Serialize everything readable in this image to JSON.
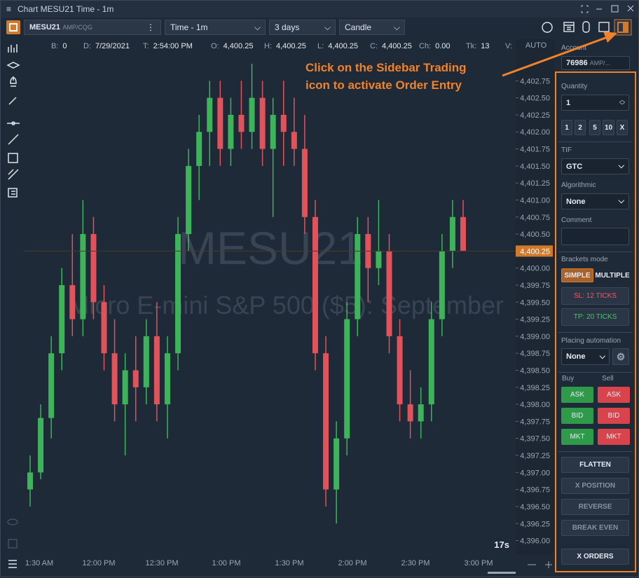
{
  "window": {
    "title": "Chart MESU21 Time - 1m"
  },
  "toolbar": {
    "symbol": "MESU21",
    "exchange": "AMP/CQG",
    "timeframe": "Time - 1m",
    "range": "3 days",
    "style": "Candle"
  },
  "info": [
    [
      "B:",
      "0"
    ],
    [
      "D:",
      "7/29/2021"
    ],
    [
      "T:",
      "2:54:00 PM"
    ],
    [
      "O:",
      "4,400.25"
    ],
    [
      "H:",
      "4,400.25"
    ],
    [
      "L:",
      "4,400.25"
    ],
    [
      "C:",
      "4,400.25"
    ],
    [
      "Ch:",
      "0.00"
    ],
    [
      "Tk:",
      "13"
    ],
    [
      "V:"
    ]
  ],
  "chart": {
    "symbol_watermark": "MESU21",
    "description_watermark": "Micro E-mini S&P 500 ($5): September",
    "scale_mode": "AUTO",
    "timer": "17s",
    "ylim": [
      4395.8,
      4403.35
    ],
    "yticks": [
      {
        "value": 4396,
        "label": "4,396.00"
      },
      {
        "value": 4396.25,
        "label": "4,396.25"
      },
      {
        "value": 4396.5,
        "label": "4,396.50"
      },
      {
        "value": 4396.75,
        "label": "4,396.75"
      },
      {
        "value": 4397,
        "label": "4,397.00"
      },
      {
        "value": 4397.25,
        "label": "4,397.25"
      },
      {
        "value": 4397.5,
        "label": "4,397.50"
      },
      {
        "value": 4397.75,
        "label": "4,397.75"
      },
      {
        "value": 4398,
        "label": "4,398.00"
      },
      {
        "value": 4398.25,
        "label": "4,398.25"
      },
      {
        "value": 4398.5,
        "label": "4,398.50"
      },
      {
        "value": 4398.75,
        "label": "4,398.75"
      },
      {
        "value": 4399,
        "label": "4,399.00"
      },
      {
        "value": 4399.25,
        "label": "4,399.25"
      },
      {
        "value": 4399.5,
        "label": "4,399.50"
      },
      {
        "value": 4399.75,
        "label": "4,399.75"
      },
      {
        "value": 4400,
        "label": "4,400.00"
      },
      {
        "value": 4400.25,
        "label": "4,400.25"
      },
      {
        "value": 4400.5,
        "label": "4,400.50"
      },
      {
        "value": 4400.75,
        "label": "4,400.75"
      },
      {
        "value": 4401,
        "label": "4,401.00"
      },
      {
        "value": 4401.25,
        "label": "4,401.25"
      },
      {
        "value": 4401.5,
        "label": "4,401.50"
      },
      {
        "value": 4401.75,
        "label": "4,401.75"
      },
      {
        "value": 4402,
        "label": "4,402.00"
      },
      {
        "value": 4402.25,
        "label": "4,402.25"
      },
      {
        "value": 4402.5,
        "label": "4,402.50"
      },
      {
        "value": 4402.75,
        "label": "4,402.75"
      }
    ],
    "x_labels": [
      "1:30 AM",
      "12:00 PM",
      "12:30 PM",
      "1:00 PM",
      "1:30 PM",
      "2:00 PM",
      "2:30 PM",
      "3:00 PM"
    ],
    "last_price": {
      "value": 4400.25,
      "label": "4,400.25"
    },
    "up_color": "#3db35a",
    "down_color": "#e0535b",
    "candles": [
      [
        4396.75,
        4397.25,
        4396.5,
        4397.0
      ],
      [
        4397.0,
        4398.0,
        4396.9,
        4397.8
      ],
      [
        4397.8,
        4399.0,
        4397.5,
        4398.75
      ],
      [
        4398.75,
        4400.0,
        4398.5,
        4399.75
      ],
      [
        4399.75,
        4400.5,
        4399.0,
        4399.25
      ],
      [
        4399.25,
        4401.0,
        4399.0,
        4400.5
      ],
      [
        4400.5,
        4400.75,
        4399.25,
        4399.5
      ],
      [
        4399.5,
        4399.75,
        4398.5,
        4398.75
      ],
      [
        4398.75,
        4399.25,
        4397.75,
        4398.0
      ],
      [
        4398.0,
        4398.75,
        4397.25,
        4398.5
      ],
      [
        4398.5,
        4399.0,
        4397.75,
        4398.25
      ],
      [
        4398.25,
        4399.25,
        4398.0,
        4399.0
      ],
      [
        4399.0,
        4399.5,
        4397.75,
        4398.0
      ],
      [
        4398.0,
        4399.0,
        4397.5,
        4398.75
      ],
      [
        4398.75,
        4400.75,
        4398.5,
        4400.5
      ],
      [
        4400.5,
        4401.75,
        4400.25,
        4401.5
      ],
      [
        4401.5,
        4402.25,
        4401.0,
        4402.0
      ],
      [
        4402.0,
        4402.75,
        4401.5,
        4402.5
      ],
      [
        4402.5,
        4402.75,
        4401.5,
        4401.75
      ],
      [
        4401.75,
        4402.5,
        4401.5,
        4402.25
      ],
      [
        4402.25,
        4402.75,
        4401.75,
        4402.0
      ],
      [
        4402.0,
        4403.0,
        4401.75,
        4402.5
      ],
      [
        4402.5,
        4402.75,
        4401.5,
        4401.75
      ],
      [
        4401.75,
        4402.5,
        4400.75,
        4402.25
      ],
      [
        4402.25,
        4402.75,
        4401.5,
        4402.0
      ],
      [
        4402.0,
        4402.5,
        4401.5,
        4401.75
      ],
      [
        4401.75,
        4402.25,
        4400.5,
        4400.75
      ],
      [
        4400.75,
        4401.0,
        4398.5,
        4398.75
      ],
      [
        4398.75,
        4399.0,
        4396.5,
        4396.75
      ],
      [
        4396.75,
        4397.75,
        4396.25,
        4397.5
      ],
      [
        4397.5,
        4399.5,
        4397.25,
        4399.25
      ],
      [
        4399.25,
        4400.75,
        4399.0,
        4400.5
      ],
      [
        4400.5,
        4400.75,
        4399.5,
        4400.0
      ],
      [
        4400.0,
        4401.0,
        4399.75,
        4400.25
      ],
      [
        4400.25,
        4400.5,
        4398.75,
        4399.0
      ],
      [
        4399.0,
        4399.25,
        4397.75,
        4398.0
      ],
      [
        4398.0,
        4398.5,
        4397.5,
        4397.75
      ],
      [
        4397.75,
        4398.25,
        4397.5,
        4398.0
      ],
      [
        4398.0,
        4399.5,
        4397.75,
        4399.25
      ],
      [
        4399.25,
        4400.5,
        4399.0,
        4400.25
      ],
      [
        4400.25,
        4401.0,
        4400.0,
        4400.75
      ],
      [
        4400.75,
        4401.0,
        4400.25,
        4400.25
      ]
    ]
  },
  "annotation": {
    "lines": [
      "Click on the Sidebar Trading",
      "icon to activate Order Entry"
    ]
  },
  "sidebar": {
    "account_label": "Account",
    "account": "76986",
    "account_route": "AMP/...",
    "quantity_label": "Quantity",
    "quantity": "1",
    "quantity_presets": [
      "1",
      "2",
      "5",
      "10",
      "X"
    ],
    "tif_label": "TIF",
    "tif": "GTC",
    "algorithmic_label": "Algorithmic",
    "algorithmic": "None",
    "comment_label": "Comment",
    "brackets_label": "Brackets mode",
    "brackets_modes": [
      "SIMPLE",
      "MULTIPLE"
    ],
    "stop_loss": "SL: 12 TICKS",
    "take_profit": "TP: 20 TICKS",
    "placing_label": "Placing automation",
    "placing": "None",
    "buy_label": "Buy",
    "sell_label": "Sell",
    "buy_buttons": [
      "ASK",
      "BID",
      "MKT"
    ],
    "sell_buttons": [
      "ASK",
      "BID",
      "MKT"
    ],
    "actions": [
      "FLATTEN",
      "X POSITION",
      "REVERSE",
      "BREAK EVEN",
      "X ORDERS"
    ]
  }
}
